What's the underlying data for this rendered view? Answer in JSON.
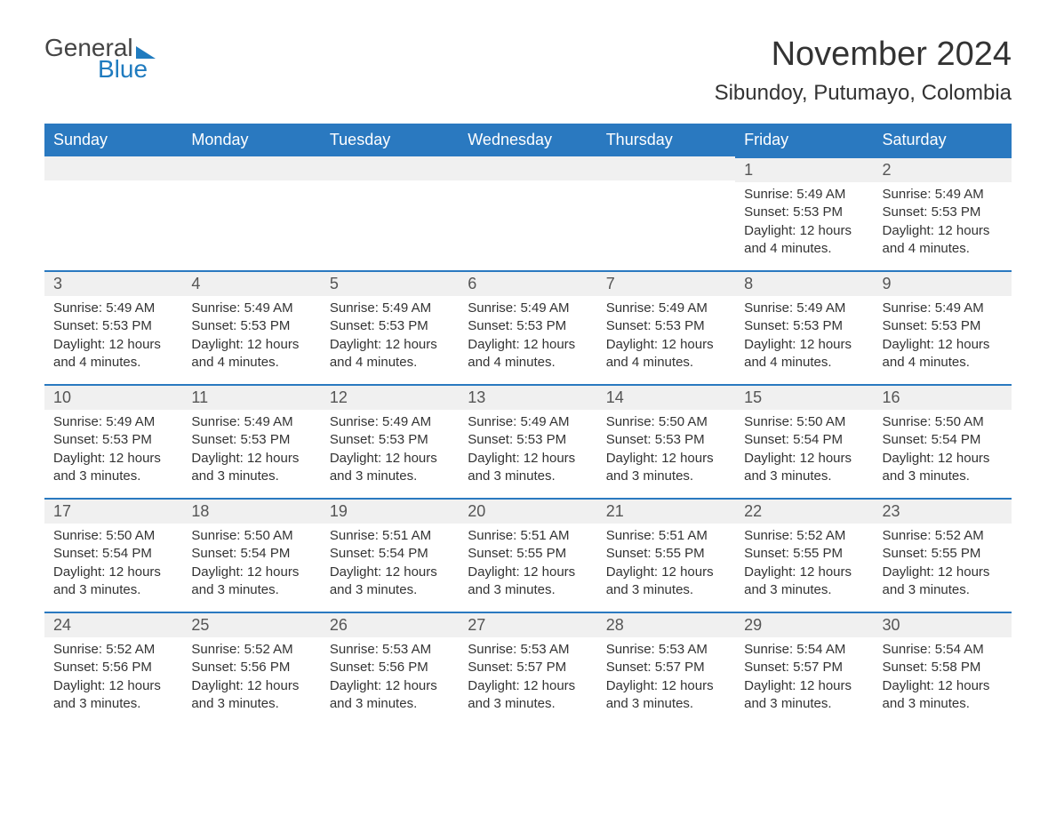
{
  "logo": {
    "text1": "General",
    "text2": "Blue"
  },
  "title": "November 2024",
  "location": "Sibundoy, Putumayo, Colombia",
  "colors": {
    "header_bg": "#2a79c0",
    "header_text": "#ffffff",
    "daynum_bg": "#f0f0f0",
    "border_top": "#2a79c0",
    "body_text": "#333333",
    "logo_blue": "#1f7bbf"
  },
  "fonts": {
    "title_size": 38,
    "location_size": 24,
    "header_size": 18,
    "daynum_size": 18,
    "body_size": 15
  },
  "day_headers": [
    "Sunday",
    "Monday",
    "Tuesday",
    "Wednesday",
    "Thursday",
    "Friday",
    "Saturday"
  ],
  "weeks": [
    [
      {
        "blank": true
      },
      {
        "blank": true
      },
      {
        "blank": true
      },
      {
        "blank": true
      },
      {
        "blank": true
      },
      {
        "num": "1",
        "sunrise": "Sunrise: 5:49 AM",
        "sunset": "Sunset: 5:53 PM",
        "daylight": "Daylight: 12 hours and 4 minutes."
      },
      {
        "num": "2",
        "sunrise": "Sunrise: 5:49 AM",
        "sunset": "Sunset: 5:53 PM",
        "daylight": "Daylight: 12 hours and 4 minutes."
      }
    ],
    [
      {
        "num": "3",
        "sunrise": "Sunrise: 5:49 AM",
        "sunset": "Sunset: 5:53 PM",
        "daylight": "Daylight: 12 hours and 4 minutes."
      },
      {
        "num": "4",
        "sunrise": "Sunrise: 5:49 AM",
        "sunset": "Sunset: 5:53 PM",
        "daylight": "Daylight: 12 hours and 4 minutes."
      },
      {
        "num": "5",
        "sunrise": "Sunrise: 5:49 AM",
        "sunset": "Sunset: 5:53 PM",
        "daylight": "Daylight: 12 hours and 4 minutes."
      },
      {
        "num": "6",
        "sunrise": "Sunrise: 5:49 AM",
        "sunset": "Sunset: 5:53 PM",
        "daylight": "Daylight: 12 hours and 4 minutes."
      },
      {
        "num": "7",
        "sunrise": "Sunrise: 5:49 AM",
        "sunset": "Sunset: 5:53 PM",
        "daylight": "Daylight: 12 hours and 4 minutes."
      },
      {
        "num": "8",
        "sunrise": "Sunrise: 5:49 AM",
        "sunset": "Sunset: 5:53 PM",
        "daylight": "Daylight: 12 hours and 4 minutes."
      },
      {
        "num": "9",
        "sunrise": "Sunrise: 5:49 AM",
        "sunset": "Sunset: 5:53 PM",
        "daylight": "Daylight: 12 hours and 4 minutes."
      }
    ],
    [
      {
        "num": "10",
        "sunrise": "Sunrise: 5:49 AM",
        "sunset": "Sunset: 5:53 PM",
        "daylight": "Daylight: 12 hours and 3 minutes."
      },
      {
        "num": "11",
        "sunrise": "Sunrise: 5:49 AM",
        "sunset": "Sunset: 5:53 PM",
        "daylight": "Daylight: 12 hours and 3 minutes."
      },
      {
        "num": "12",
        "sunrise": "Sunrise: 5:49 AM",
        "sunset": "Sunset: 5:53 PM",
        "daylight": "Daylight: 12 hours and 3 minutes."
      },
      {
        "num": "13",
        "sunrise": "Sunrise: 5:49 AM",
        "sunset": "Sunset: 5:53 PM",
        "daylight": "Daylight: 12 hours and 3 minutes."
      },
      {
        "num": "14",
        "sunrise": "Sunrise: 5:50 AM",
        "sunset": "Sunset: 5:53 PM",
        "daylight": "Daylight: 12 hours and 3 minutes."
      },
      {
        "num": "15",
        "sunrise": "Sunrise: 5:50 AM",
        "sunset": "Sunset: 5:54 PM",
        "daylight": "Daylight: 12 hours and 3 minutes."
      },
      {
        "num": "16",
        "sunrise": "Sunrise: 5:50 AM",
        "sunset": "Sunset: 5:54 PM",
        "daylight": "Daylight: 12 hours and 3 minutes."
      }
    ],
    [
      {
        "num": "17",
        "sunrise": "Sunrise: 5:50 AM",
        "sunset": "Sunset: 5:54 PM",
        "daylight": "Daylight: 12 hours and 3 minutes."
      },
      {
        "num": "18",
        "sunrise": "Sunrise: 5:50 AM",
        "sunset": "Sunset: 5:54 PM",
        "daylight": "Daylight: 12 hours and 3 minutes."
      },
      {
        "num": "19",
        "sunrise": "Sunrise: 5:51 AM",
        "sunset": "Sunset: 5:54 PM",
        "daylight": "Daylight: 12 hours and 3 minutes."
      },
      {
        "num": "20",
        "sunrise": "Sunrise: 5:51 AM",
        "sunset": "Sunset: 5:55 PM",
        "daylight": "Daylight: 12 hours and 3 minutes."
      },
      {
        "num": "21",
        "sunrise": "Sunrise: 5:51 AM",
        "sunset": "Sunset: 5:55 PM",
        "daylight": "Daylight: 12 hours and 3 minutes."
      },
      {
        "num": "22",
        "sunrise": "Sunrise: 5:52 AM",
        "sunset": "Sunset: 5:55 PM",
        "daylight": "Daylight: 12 hours and 3 minutes."
      },
      {
        "num": "23",
        "sunrise": "Sunrise: 5:52 AM",
        "sunset": "Sunset: 5:55 PM",
        "daylight": "Daylight: 12 hours and 3 minutes."
      }
    ],
    [
      {
        "num": "24",
        "sunrise": "Sunrise: 5:52 AM",
        "sunset": "Sunset: 5:56 PM",
        "daylight": "Daylight: 12 hours and 3 minutes."
      },
      {
        "num": "25",
        "sunrise": "Sunrise: 5:52 AM",
        "sunset": "Sunset: 5:56 PM",
        "daylight": "Daylight: 12 hours and 3 minutes."
      },
      {
        "num": "26",
        "sunrise": "Sunrise: 5:53 AM",
        "sunset": "Sunset: 5:56 PM",
        "daylight": "Daylight: 12 hours and 3 minutes."
      },
      {
        "num": "27",
        "sunrise": "Sunrise: 5:53 AM",
        "sunset": "Sunset: 5:57 PM",
        "daylight": "Daylight: 12 hours and 3 minutes."
      },
      {
        "num": "28",
        "sunrise": "Sunrise: 5:53 AM",
        "sunset": "Sunset: 5:57 PM",
        "daylight": "Daylight: 12 hours and 3 minutes."
      },
      {
        "num": "29",
        "sunrise": "Sunrise: 5:54 AM",
        "sunset": "Sunset: 5:57 PM",
        "daylight": "Daylight: 12 hours and 3 minutes."
      },
      {
        "num": "30",
        "sunrise": "Sunrise: 5:54 AM",
        "sunset": "Sunset: 5:58 PM",
        "daylight": "Daylight: 12 hours and 3 minutes."
      }
    ]
  ]
}
